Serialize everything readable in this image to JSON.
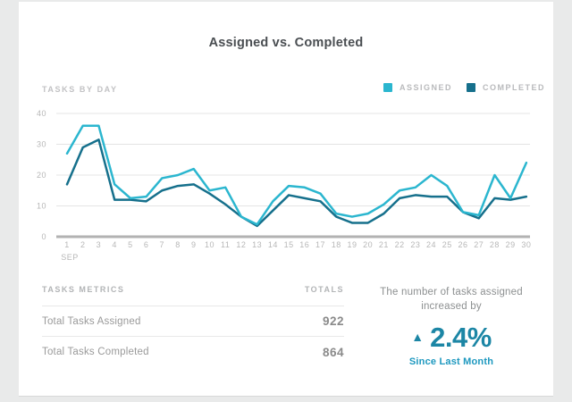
{
  "page": {
    "background": "#e9eaea",
    "card_background": "#ffffff"
  },
  "header": {
    "title": "Assigned vs. Completed"
  },
  "chart": {
    "section_label": "TASKS BY DAY",
    "legend": [
      {
        "label": "ASSIGNED",
        "color": "#2bb6cf"
      },
      {
        "label": "COMPLETED",
        "color": "#16708c"
      }
    ]
  },
  "chart_data": {
    "type": "line",
    "title": "Assigned vs. Completed",
    "xlabel": "SEP",
    "ylabel": "",
    "x": [
      1,
      2,
      3,
      4,
      5,
      6,
      7,
      8,
      9,
      10,
      11,
      12,
      13,
      14,
      15,
      16,
      17,
      18,
      19,
      20,
      21,
      22,
      23,
      24,
      25,
      26,
      27,
      28,
      29,
      30
    ],
    "month_label": "SEP",
    "ylim": [
      0,
      40
    ],
    "y_ticks": [
      0,
      10,
      20,
      30,
      40
    ],
    "grid": "horizontal",
    "legend_position": "top-right",
    "series": [
      {
        "name": "ASSIGNED",
        "color": "#2bb6cf",
        "values": [
          27,
          36,
          36,
          17,
          12.5,
          13,
          19,
          20,
          22,
          15,
          16,
          6.5,
          4,
          11.5,
          16.5,
          16,
          14,
          7.5,
          6.5,
          7.5,
          10.5,
          15,
          16,
          20,
          16.5,
          8,
          7,
          20,
          12.5,
          24
        ]
      },
      {
        "name": "COMPLETED",
        "color": "#16708c",
        "values": [
          17,
          29,
          31.5,
          12,
          12,
          11.5,
          15,
          16.5,
          17,
          14,
          10.5,
          6.5,
          3.5,
          8.5,
          13.5,
          12.5,
          11.5,
          6.5,
          4.5,
          4.5,
          7.5,
          12.5,
          13.5,
          13,
          13,
          8,
          6,
          12.5,
          12,
          13
        ]
      }
    ],
    "colors": {
      "gridline": "#e4e4e4",
      "zero_line": "#b2b2b2",
      "axis_text": "#b7b7b7"
    }
  },
  "metrics": {
    "header": "TASKS METRICS",
    "totals_header": "TOTALS",
    "rows": [
      {
        "label": "Total Tasks Assigned",
        "value": "922"
      },
      {
        "label": "Total Tasks Completed",
        "value": "864"
      }
    ]
  },
  "summary": {
    "line1": "The number of tasks assigned",
    "line2": "increased by",
    "arrow": "▲",
    "percent": "2.4%",
    "caption": "Since Last Month",
    "accent_color": "#1c86a5",
    "caption_color": "#1d98bf"
  }
}
